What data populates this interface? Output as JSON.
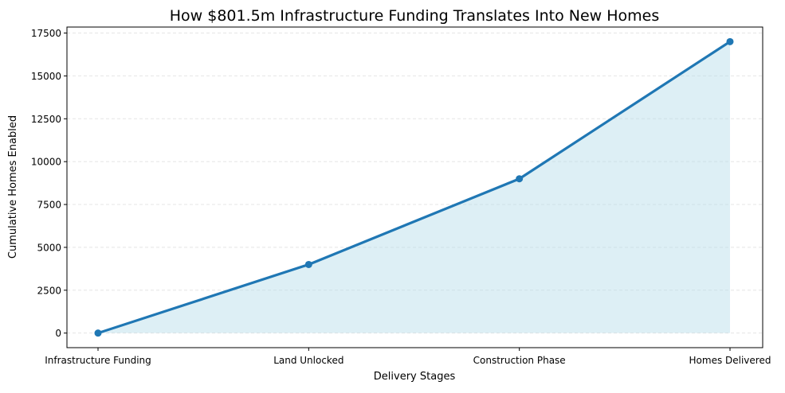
{
  "chart_data": {
    "type": "area",
    "title": "How $801.5m Infrastructure Funding Translates Into New Homes",
    "xlabel": "Delivery Stages",
    "ylabel": "Cumulative Homes Enabled",
    "categories": [
      "Infrastructure Funding",
      "Land Unlocked",
      "Construction Phase",
      "Homes Delivered"
    ],
    "values": [
      0,
      4000,
      9000,
      17000
    ],
    "ylim": [
      -850,
      17850
    ],
    "yticks": [
      0,
      2500,
      5000,
      7500,
      10000,
      12500,
      15000,
      17500
    ],
    "grid": true,
    "colors": {
      "line": "#1f77b4",
      "fill": "#add8e6"
    }
  }
}
